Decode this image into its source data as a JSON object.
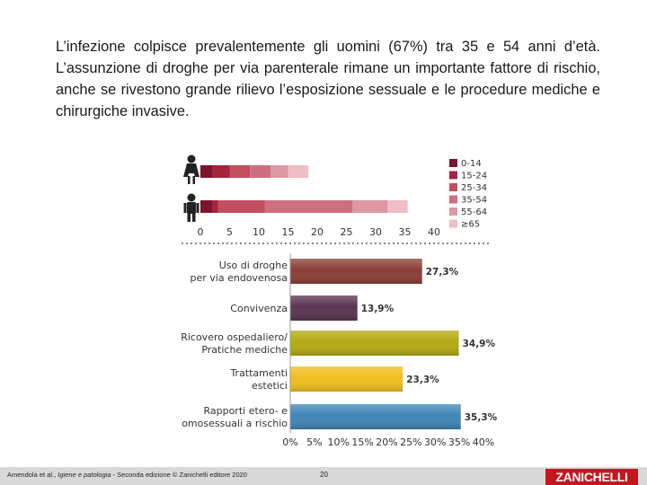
{
  "slide": {
    "paragraph": "L’infezione colpisce prevalentemente gli uomini (67%) tra 35 e 54 anni d’età. L’assunzione di droghe per via parenterale rimane un importante fattore di rischio, anche se rivestono grande rilievo l’esposizione sessuale e le procedure mediche e chirurgiche invasive."
  },
  "chart_data": [
    {
      "type": "bar",
      "orientation": "horizontal",
      "stacked": true,
      "categories": [
        "female-icon",
        "male-icon"
      ],
      "series": [
        {
          "name": "0-14",
          "color": "#7b1530",
          "values": [
            2,
            2
          ]
        },
        {
          "name": "15-24",
          "color": "#a3253f",
          "values": [
            3,
            1
          ]
        },
        {
          "name": "25-34",
          "color": "#c0505f",
          "values": [
            3.5,
            8
          ]
        },
        {
          "name": "35-54",
          "color": "#cc6f7e",
          "values": [
            3.5,
            15
          ]
        },
        {
          "name": "55-64",
          "color": "#dd98a3",
          "values": [
            3,
            6
          ]
        },
        {
          "name": "≥65",
          "color": "#efbdc5",
          "values": [
            3.5,
            3.5
          ]
        }
      ],
      "x_ticks": [
        "0",
        "5",
        "10",
        "15",
        "20",
        "25",
        "30",
        "35",
        "40"
      ],
      "xlim": [
        0,
        40
      ],
      "legend_position": "right"
    },
    {
      "type": "bar",
      "orientation": "horizontal",
      "categories": [
        [
          "Uso di droghe",
          "per via endovenosa"
        ],
        [
          "Convivenza"
        ],
        [
          "Ricovero ospedaliero/",
          "Pratiche mediche"
        ],
        [
          "Trattamenti",
          "estetici"
        ],
        [
          "Rapporti etero- e",
          "omosessuali a rischio"
        ]
      ],
      "values": [
        27.3,
        13.9,
        34.9,
        23.3,
        35.3
      ],
      "value_labels": [
        "27,3%",
        "13,9%",
        "34,9%",
        "23,3%",
        "35,3%"
      ],
      "colors": [
        "#8a3f36",
        "#5a3550",
        "#b4aa12",
        "#f0be1e",
        "#3f86b6"
      ],
      "x_ticks": [
        "0%",
        "5%",
        "10%",
        "15%",
        "20%",
        "25%",
        "30%",
        "35%",
        "40%"
      ],
      "xlim": [
        0,
        40
      ]
    }
  ],
  "footer": {
    "credit_prefix": "Amendola et al., ",
    "credit_title": "Igiene e patologia",
    "credit_suffix": " - Seconda edizione © Zanichelli editore 2020",
    "page_number": "20",
    "publisher_logo": "ZANICHELLI"
  }
}
